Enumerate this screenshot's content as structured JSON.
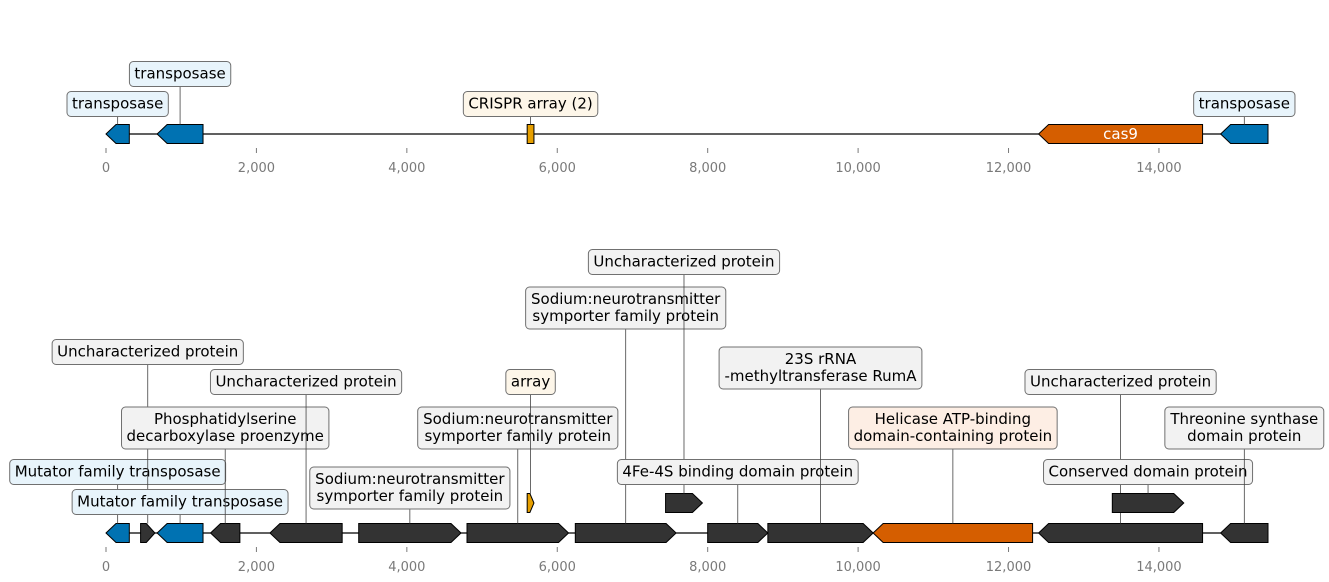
{
  "chart_data": [
    {
      "type": "genome-track",
      "xlim": [
        0,
        15450
      ],
      "tick_values": [
        0,
        2000,
        4000,
        6000,
        8000,
        10000,
        12000,
        14000
      ],
      "tick_labels": [
        "0",
        "2,000",
        "4,000",
        "6,000",
        "8,000",
        "10,000",
        "12,000",
        "14,000"
      ],
      "features": [
        {
          "start": 0,
          "end": 310,
          "strand": -1,
          "kind": "blue",
          "label": "transposase"
        },
        {
          "start": 680,
          "end": 1290,
          "strand": -1,
          "kind": "blue",
          "label": "transposase"
        },
        {
          "start": 5600,
          "end": 5690,
          "strand": 0,
          "kind": "orange",
          "label": "CRISPR array (2)"
        },
        {
          "start": 12400,
          "end": 14580,
          "strand": -1,
          "kind": "red",
          "label": "",
          "inline_label": "cas9"
        },
        {
          "start": 14820,
          "end": 15450,
          "strand": -1,
          "kind": "blue",
          "label": "transposase"
        }
      ]
    },
    {
      "type": "genome-track",
      "xlim": [
        0,
        15450
      ],
      "tick_values": [
        0,
        2000,
        4000,
        6000,
        8000,
        10000,
        12000,
        14000
      ],
      "tick_labels": [
        "0",
        "2,000",
        "4,000",
        "6,000",
        "8,000",
        "10,000",
        "12,000",
        "14,000"
      ],
      "features": [
        {
          "start": 0,
          "end": 310,
          "strand": -1,
          "kind": "blue",
          "label": "Mutator family transposase"
        },
        {
          "start": 460,
          "end": 650,
          "strand": 1,
          "kind": "dark",
          "label": "Uncharacterized protein"
        },
        {
          "start": 680,
          "end": 1290,
          "strand": -1,
          "kind": "blue",
          "label": "Mutator family transposase"
        },
        {
          "start": 1390,
          "end": 1780,
          "strand": -1,
          "kind": "dark",
          "label": "Phosphatidylserine\ndecarboxylase proenzyme"
        },
        {
          "start": 2180,
          "end": 3140,
          "strand": -1,
          "kind": "dark",
          "label": "Uncharacterized protein"
        },
        {
          "start": 3360,
          "end": 4720,
          "strand": 1,
          "kind": "dark",
          "label": "Sodium:neurotransmitter\nsymporter family protein"
        },
        {
          "start": 4800,
          "end": 6150,
          "strand": 1,
          "kind": "dark",
          "label": "Sodium:neurotransmitter\nsymporter family protein"
        },
        {
          "start": 5600,
          "end": 5690,
          "strand": 1,
          "kind": "orange",
          "label": "array"
        },
        {
          "start": 6240,
          "end": 7580,
          "strand": 1,
          "kind": "dark",
          "label": "Sodium:neurotransmitter\nsymporter family protein"
        },
        {
          "start": 7440,
          "end": 7930,
          "strand": 1,
          "kind": "dark",
          "label": "Uncharacterized protein"
        },
        {
          "start": 8000,
          "end": 8800,
          "strand": 1,
          "kind": "dark",
          "label": "4Fe-4S binding domain protein"
        },
        {
          "start": 8800,
          "end": 10200,
          "strand": 1,
          "kind": "dark",
          "label": "23S rRNA\n-methyltransferase RumA"
        },
        {
          "start": 10200,
          "end": 12320,
          "strand": -1,
          "kind": "red",
          "label": "Helicase ATP-binding\ndomain-containing protein"
        },
        {
          "start": 12400,
          "end": 14580,
          "strand": -1,
          "kind": "dark",
          "label": "Uncharacterized protein"
        },
        {
          "start": 13380,
          "end": 14330,
          "strand": 1,
          "kind": "dark",
          "label": "Conserved domain protein"
        },
        {
          "start": 14820,
          "end": 15450,
          "strand": -1,
          "kind": "dark",
          "label": "Threonine synthase\ndomain protein"
        }
      ]
    }
  ],
  "colors": {
    "blue": "#0072b2",
    "orange": "#e69f00",
    "red": "#d55e00",
    "dark": "#333333",
    "box_blue_fill": "#e8f4fb",
    "box_orange_fill": "#fdf6e9",
    "box_red_fill": "#fdeee4",
    "box_dark_fill": "#f2f2f2",
    "box_stroke": "#707070"
  }
}
